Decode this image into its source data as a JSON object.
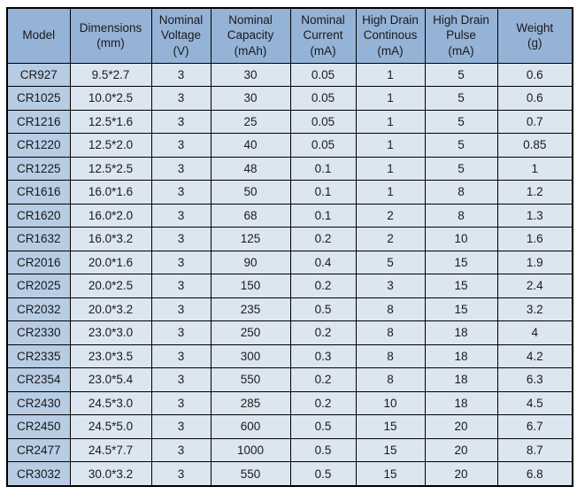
{
  "chart_data": {
    "type": "table",
    "columns": [
      "Model",
      "Dimensions\n(mm)",
      "Nominal\nVoltage\n(V)",
      "Nominal\nCapacity\n(mAh)",
      "Nominal\nCurrent\n(mA)",
      "High Drain\nContinous\n(mA)",
      "High Drain\nPulse\n(mA)",
      "Weight\n(g)"
    ],
    "rows": [
      [
        "CR927",
        "9.5*2.7",
        "3",
        "30",
        "0.05",
        "1",
        "5",
        "0.6"
      ],
      [
        "CR1025",
        "10.0*2.5",
        "3",
        "30",
        "0.05",
        "1",
        "5",
        "0.6"
      ],
      [
        "CR1216",
        "12.5*1.6",
        "3",
        "25",
        "0.05",
        "1",
        "5",
        "0.7"
      ],
      [
        "CR1220",
        "12.5*2.0",
        "3",
        "40",
        "0.05",
        "1",
        "5",
        "0.85"
      ],
      [
        "CR1225",
        "12.5*2.5",
        "3",
        "48",
        "0.1",
        "1",
        "5",
        "1"
      ],
      [
        "CR1616",
        "16.0*1.6",
        "3",
        "50",
        "0.1",
        "1",
        "8",
        "1.2"
      ],
      [
        "CR1620",
        "16.0*2.0",
        "3",
        "68",
        "0.1",
        "2",
        "8",
        "1.3"
      ],
      [
        "CR1632",
        "16.0*3.2",
        "3",
        "125",
        "0.2",
        "2",
        "10",
        "1.6"
      ],
      [
        "CR2016",
        "20.0*1.6",
        "3",
        "90",
        "0.4",
        "5",
        "15",
        "1.9"
      ],
      [
        "CR2025",
        "20.0*2.5",
        "3",
        "150",
        "0.2",
        "3",
        "15",
        "2.4"
      ],
      [
        "CR2032",
        "20.0*3.2",
        "3",
        "235",
        "0.5",
        "8",
        "15",
        "3.2"
      ],
      [
        "CR2330",
        "23.0*3.0",
        "3",
        "250",
        "0.2",
        "8",
        "18",
        "4"
      ],
      [
        "CR2335",
        "23.0*3.5",
        "3",
        "300",
        "0.3",
        "8",
        "18",
        "4.2"
      ],
      [
        "CR2354",
        "23.0*5.4",
        "3",
        "550",
        "0.2",
        "8",
        "18",
        "6.3"
      ],
      [
        "CR2430",
        "24.5*3.0",
        "3",
        "285",
        "0.2",
        "10",
        "18",
        "4.5"
      ],
      [
        "CR2450",
        "24.5*5.0",
        "3",
        "600",
        "0.5",
        "15",
        "20",
        "6.7"
      ],
      [
        "CR2477",
        "24.5*7.7",
        "3",
        "1000",
        "0.5",
        "15",
        "20",
        "8.7"
      ],
      [
        "CR3032",
        "30.0*3.2",
        "3",
        "550",
        "0.5",
        "15",
        "20",
        "6.8"
      ]
    ]
  },
  "colors": {
    "header_bg": "#95B3D7",
    "model_col_bg": "#B8CCE4",
    "cell_bg": "#DCE6F1",
    "border_color": "#000000",
    "text_color": "#1a1a1a"
  }
}
